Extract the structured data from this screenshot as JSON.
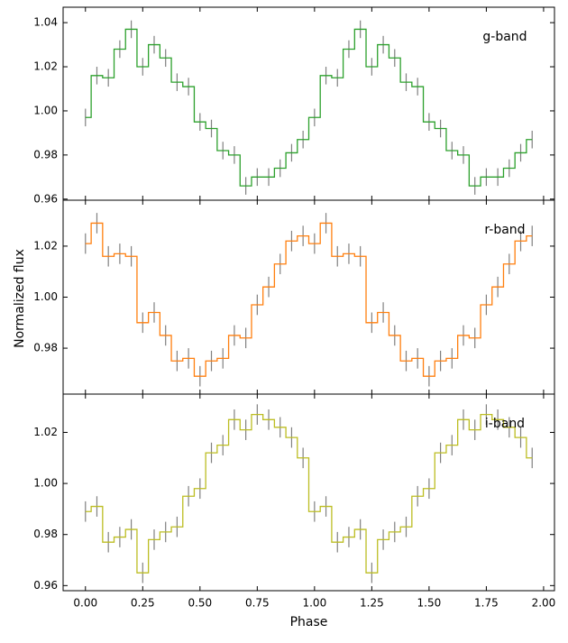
{
  "chart_data": [
    {
      "type": "step",
      "annotation": "g-band",
      "x": [
        0,
        0.05,
        0.1,
        0.15,
        0.2,
        0.25,
        0.3,
        0.35,
        0.4,
        0.45,
        0.5,
        0.55,
        0.6,
        0.65,
        0.7,
        0.75,
        0.8,
        0.85,
        0.9,
        0.95,
        1,
        1.05,
        1.1,
        1.15,
        1.2,
        1.25,
        1.3,
        1.35,
        1.4,
        1.45,
        1.5,
        1.55,
        1.6,
        1.65,
        1.7,
        1.75,
        1.8,
        1.85,
        1.9,
        1.95
      ],
      "series": [
        {
          "color": "#2ca02c",
          "error_color": "#808080",
          "values": [
            0.997,
            1.016,
            1.015,
            1.028,
            1.037,
            1.02,
            1.03,
            1.024,
            1.013,
            1.011,
            0.995,
            0.992,
            0.982,
            0.98,
            0.966,
            0.97,
            0.97,
            0.974,
            0.981,
            0.987,
            0.997,
            1.016,
            1.015,
            1.028,
            1.037,
            1.02,
            1.03,
            1.024,
            1.013,
            1.011,
            0.995,
            0.992,
            0.982,
            0.98,
            0.966,
            0.97,
            0.97,
            0.974,
            0.981,
            0.987
          ],
          "errors": [
            0.004,
            0.004,
            0.004,
            0.004,
            0.004,
            0.004,
            0.004,
            0.004,
            0.004,
            0.004,
            0.004,
            0.004,
            0.004,
            0.004,
            0.004,
            0.004,
            0.004,
            0.004,
            0.004,
            0.004,
            0.004,
            0.004,
            0.004,
            0.004,
            0.004,
            0.004,
            0.004,
            0.004,
            0.004,
            0.004,
            0.004,
            0.004,
            0.004,
            0.004,
            0.004,
            0.004,
            0.004,
            0.004,
            0.004,
            0.004
          ]
        }
      ],
      "xlim": [
        -0.0975,
        2.0475
      ],
      "ylim": [
        0.9595,
        1.047
      ],
      "yticks": [
        0.96,
        0.98,
        {
          "value": 1.0,
          "label": "1.00"
        },
        1.02,
        1.04
      ]
    },
    {
      "type": "step",
      "annotation": "r-band",
      "ylabel": "Normalized flux",
      "x": [
        0,
        0.05,
        0.1,
        0.15,
        0.2,
        0.25,
        0.3,
        0.35,
        0.4,
        0.45,
        0.5,
        0.55,
        0.6,
        0.65,
        0.7,
        0.75,
        0.8,
        0.85,
        0.9,
        0.95,
        1,
        1.05,
        1.1,
        1.15,
        1.2,
        1.25,
        1.3,
        1.35,
        1.4,
        1.45,
        1.5,
        1.55,
        1.6,
        1.65,
        1.7,
        1.75,
        1.8,
        1.85,
        1.9,
        1.95
      ],
      "series": [
        {
          "color": "#ff7f0e",
          "error_color": "#808080",
          "values": [
            1.021,
            1.029,
            1.016,
            1.017,
            1.016,
            0.99,
            0.994,
            0.985,
            0.975,
            0.976,
            0.969,
            0.975,
            0.976,
            0.985,
            0.984,
            0.997,
            1.004,
            1.013,
            1.022,
            1.024,
            1.021,
            1.029,
            1.016,
            1.017,
            1.016,
            0.99,
            0.994,
            0.985,
            0.975,
            0.976,
            0.969,
            0.975,
            0.976,
            0.985,
            0.984,
            0.997,
            1.004,
            1.013,
            1.022,
            1.024
          ],
          "errors": [
            0.004,
            0.004,
            0.004,
            0.004,
            0.004,
            0.004,
            0.004,
            0.004,
            0.004,
            0.004,
            0.004,
            0.004,
            0.004,
            0.004,
            0.004,
            0.004,
            0.004,
            0.004,
            0.004,
            0.004,
            0.004,
            0.004,
            0.004,
            0.004,
            0.004,
            0.004,
            0.004,
            0.004,
            0.004,
            0.004,
            0.004,
            0.004,
            0.004,
            0.004,
            0.004,
            0.004,
            0.004,
            0.004,
            0.004,
            0.004
          ]
        }
      ],
      "xlim": [
        -0.0975,
        2.0475
      ],
      "ylim": [
        0.962,
        1.038
      ],
      "yticks": [
        0.98,
        {
          "value": 1.0,
          "label": "1.00"
        },
        1.02
      ]
    },
    {
      "type": "step",
      "annotation": "i-band",
      "xlabel": "Phase",
      "x": [
        0,
        0.05,
        0.1,
        0.15,
        0.2,
        0.25,
        0.3,
        0.35,
        0.4,
        0.45,
        0.5,
        0.55,
        0.6,
        0.65,
        0.7,
        0.75,
        0.8,
        0.85,
        0.9,
        0.95,
        1,
        1.05,
        1.1,
        1.15,
        1.2,
        1.25,
        1.3,
        1.35,
        1.4,
        1.45,
        1.5,
        1.55,
        1.6,
        1.65,
        1.7,
        1.75,
        1.8,
        1.85,
        1.9,
        1.95
      ],
      "series": [
        {
          "color": "#bcbd22",
          "error_color": "#808080",
          "values": [
            0.989,
            0.991,
            0.977,
            0.979,
            0.982,
            0.965,
            0.978,
            0.981,
            0.983,
            0.995,
            0.998,
            1.012,
            1.015,
            1.025,
            1.021,
            1.027,
            1.025,
            1.022,
            1.018,
            1.01,
            0.989,
            0.991,
            0.977,
            0.979,
            0.982,
            0.965,
            0.978,
            0.981,
            0.983,
            0.995,
            0.998,
            1.012,
            1.015,
            1.025,
            1.021,
            1.027,
            1.025,
            1.022,
            1.018,
            1.01
          ],
          "errors": [
            0.004,
            0.004,
            0.004,
            0.004,
            0.004,
            0.004,
            0.004,
            0.004,
            0.004,
            0.004,
            0.004,
            0.004,
            0.004,
            0.004,
            0.004,
            0.004,
            0.004,
            0.004,
            0.004,
            0.004,
            0.004,
            0.004,
            0.004,
            0.004,
            0.004,
            0.004,
            0.004,
            0.004,
            0.004,
            0.004,
            0.004,
            0.004,
            0.004,
            0.004,
            0.004,
            0.004,
            0.004,
            0.004,
            0.004,
            0.004
          ]
        }
      ],
      "xlim": [
        -0.0975,
        2.0475
      ],
      "ylim": [
        0.958,
        1.035
      ],
      "yticks": [
        0.96,
        0.98,
        {
          "value": 1.0,
          "label": "1.00"
        },
        1.02
      ],
      "xticks": [
        {
          "value": 0,
          "label": "0.00"
        },
        {
          "value": 0.25,
          "label": "0.25"
        },
        {
          "value": 0.5,
          "label": "0.50"
        },
        {
          "value": 0.75,
          "label": "0.75"
        },
        {
          "value": 1.0,
          "label": "1.00"
        },
        {
          "value": 1.25,
          "label": "1.25"
        },
        {
          "value": 1.5,
          "label": "1.50"
        },
        {
          "value": 1.75,
          "label": "1.75"
        },
        {
          "value": 2.0,
          "label": "2.00"
        }
      ]
    }
  ]
}
